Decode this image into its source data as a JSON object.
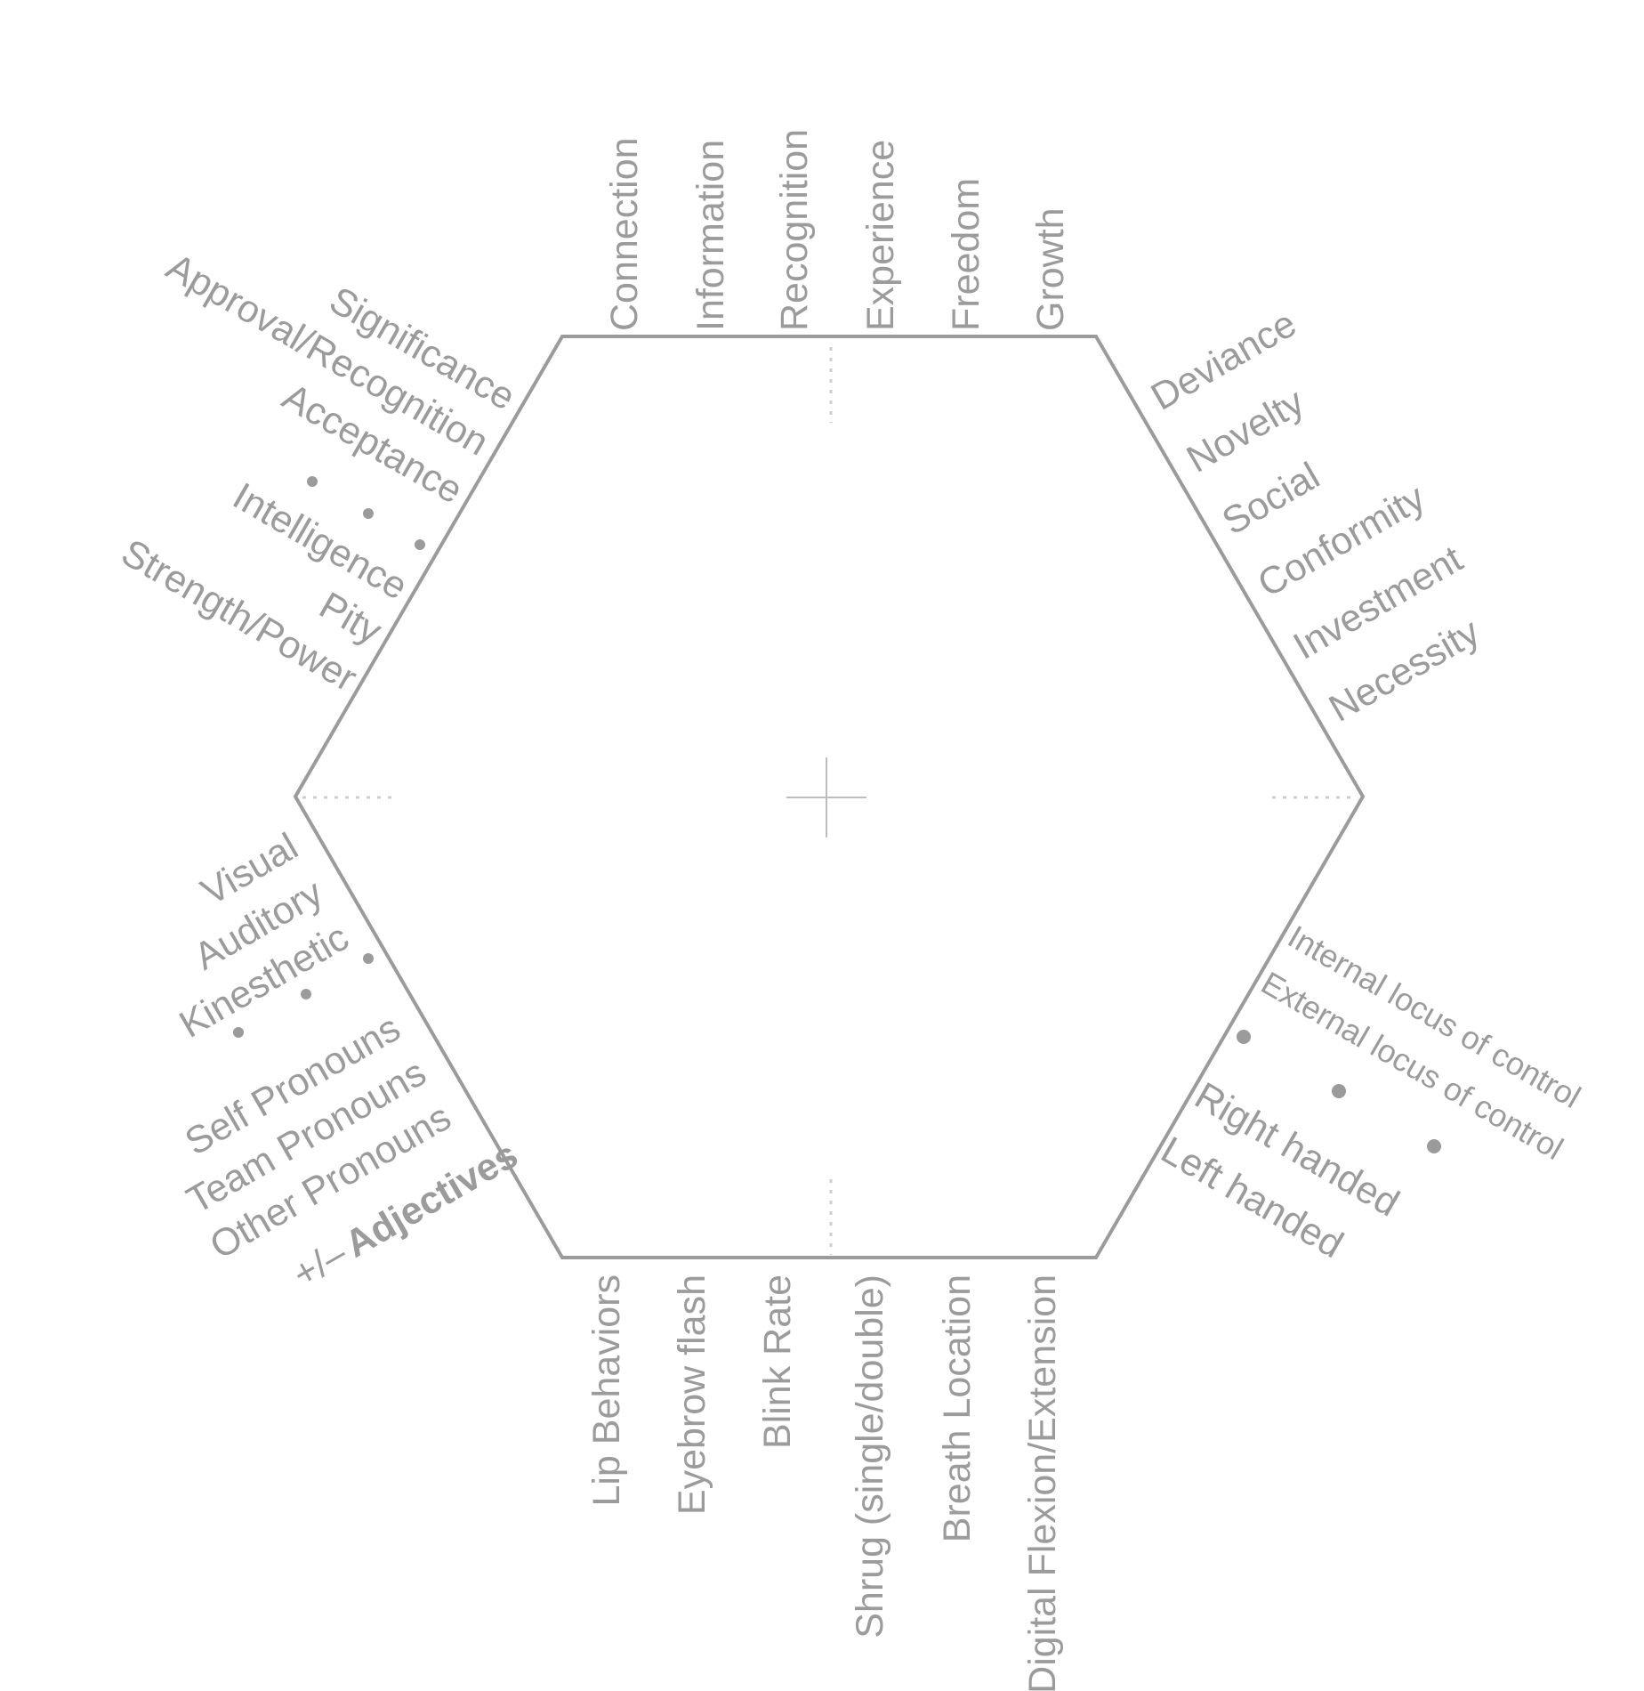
{
  "top_labels": [
    "Connection",
    "Information",
    "Recognition",
    "Experience",
    "Freedom",
    "Growth"
  ],
  "upper_left_labels": [
    "Significance",
    "Approval/Recognition",
    "Acceptance",
    "Intelligence",
    "Pity",
    "Strength/Power"
  ],
  "upper_right_labels": [
    "Deviance",
    "Novelty",
    "Social",
    "Conformity",
    "Investment",
    "Necessity"
  ],
  "lower_left_labels": [
    "Visual",
    "Auditory",
    "Kinesthetic",
    "Self Pronouns",
    "Team Pronouns",
    "Other Pronouns"
  ],
  "adjectives": {
    "prefix": "+/–",
    "label": "Adjectives"
  },
  "lower_right_labels": {
    "locus": [
      "Internal locus of control",
      "External locus of control"
    ],
    "handedness": [
      "Right handed",
      "Left handed"
    ]
  },
  "bottom_labels": [
    "Lip Behaviors",
    "Eyebrow flash",
    "Blink Rate",
    "Shrug (single/double)",
    "Breath Location",
    "Digital Flexion/Extension"
  ],
  "colors": {
    "line": "#9b9b9b",
    "text": "#9b9b9b",
    "guide": "#cfcfcf"
  }
}
